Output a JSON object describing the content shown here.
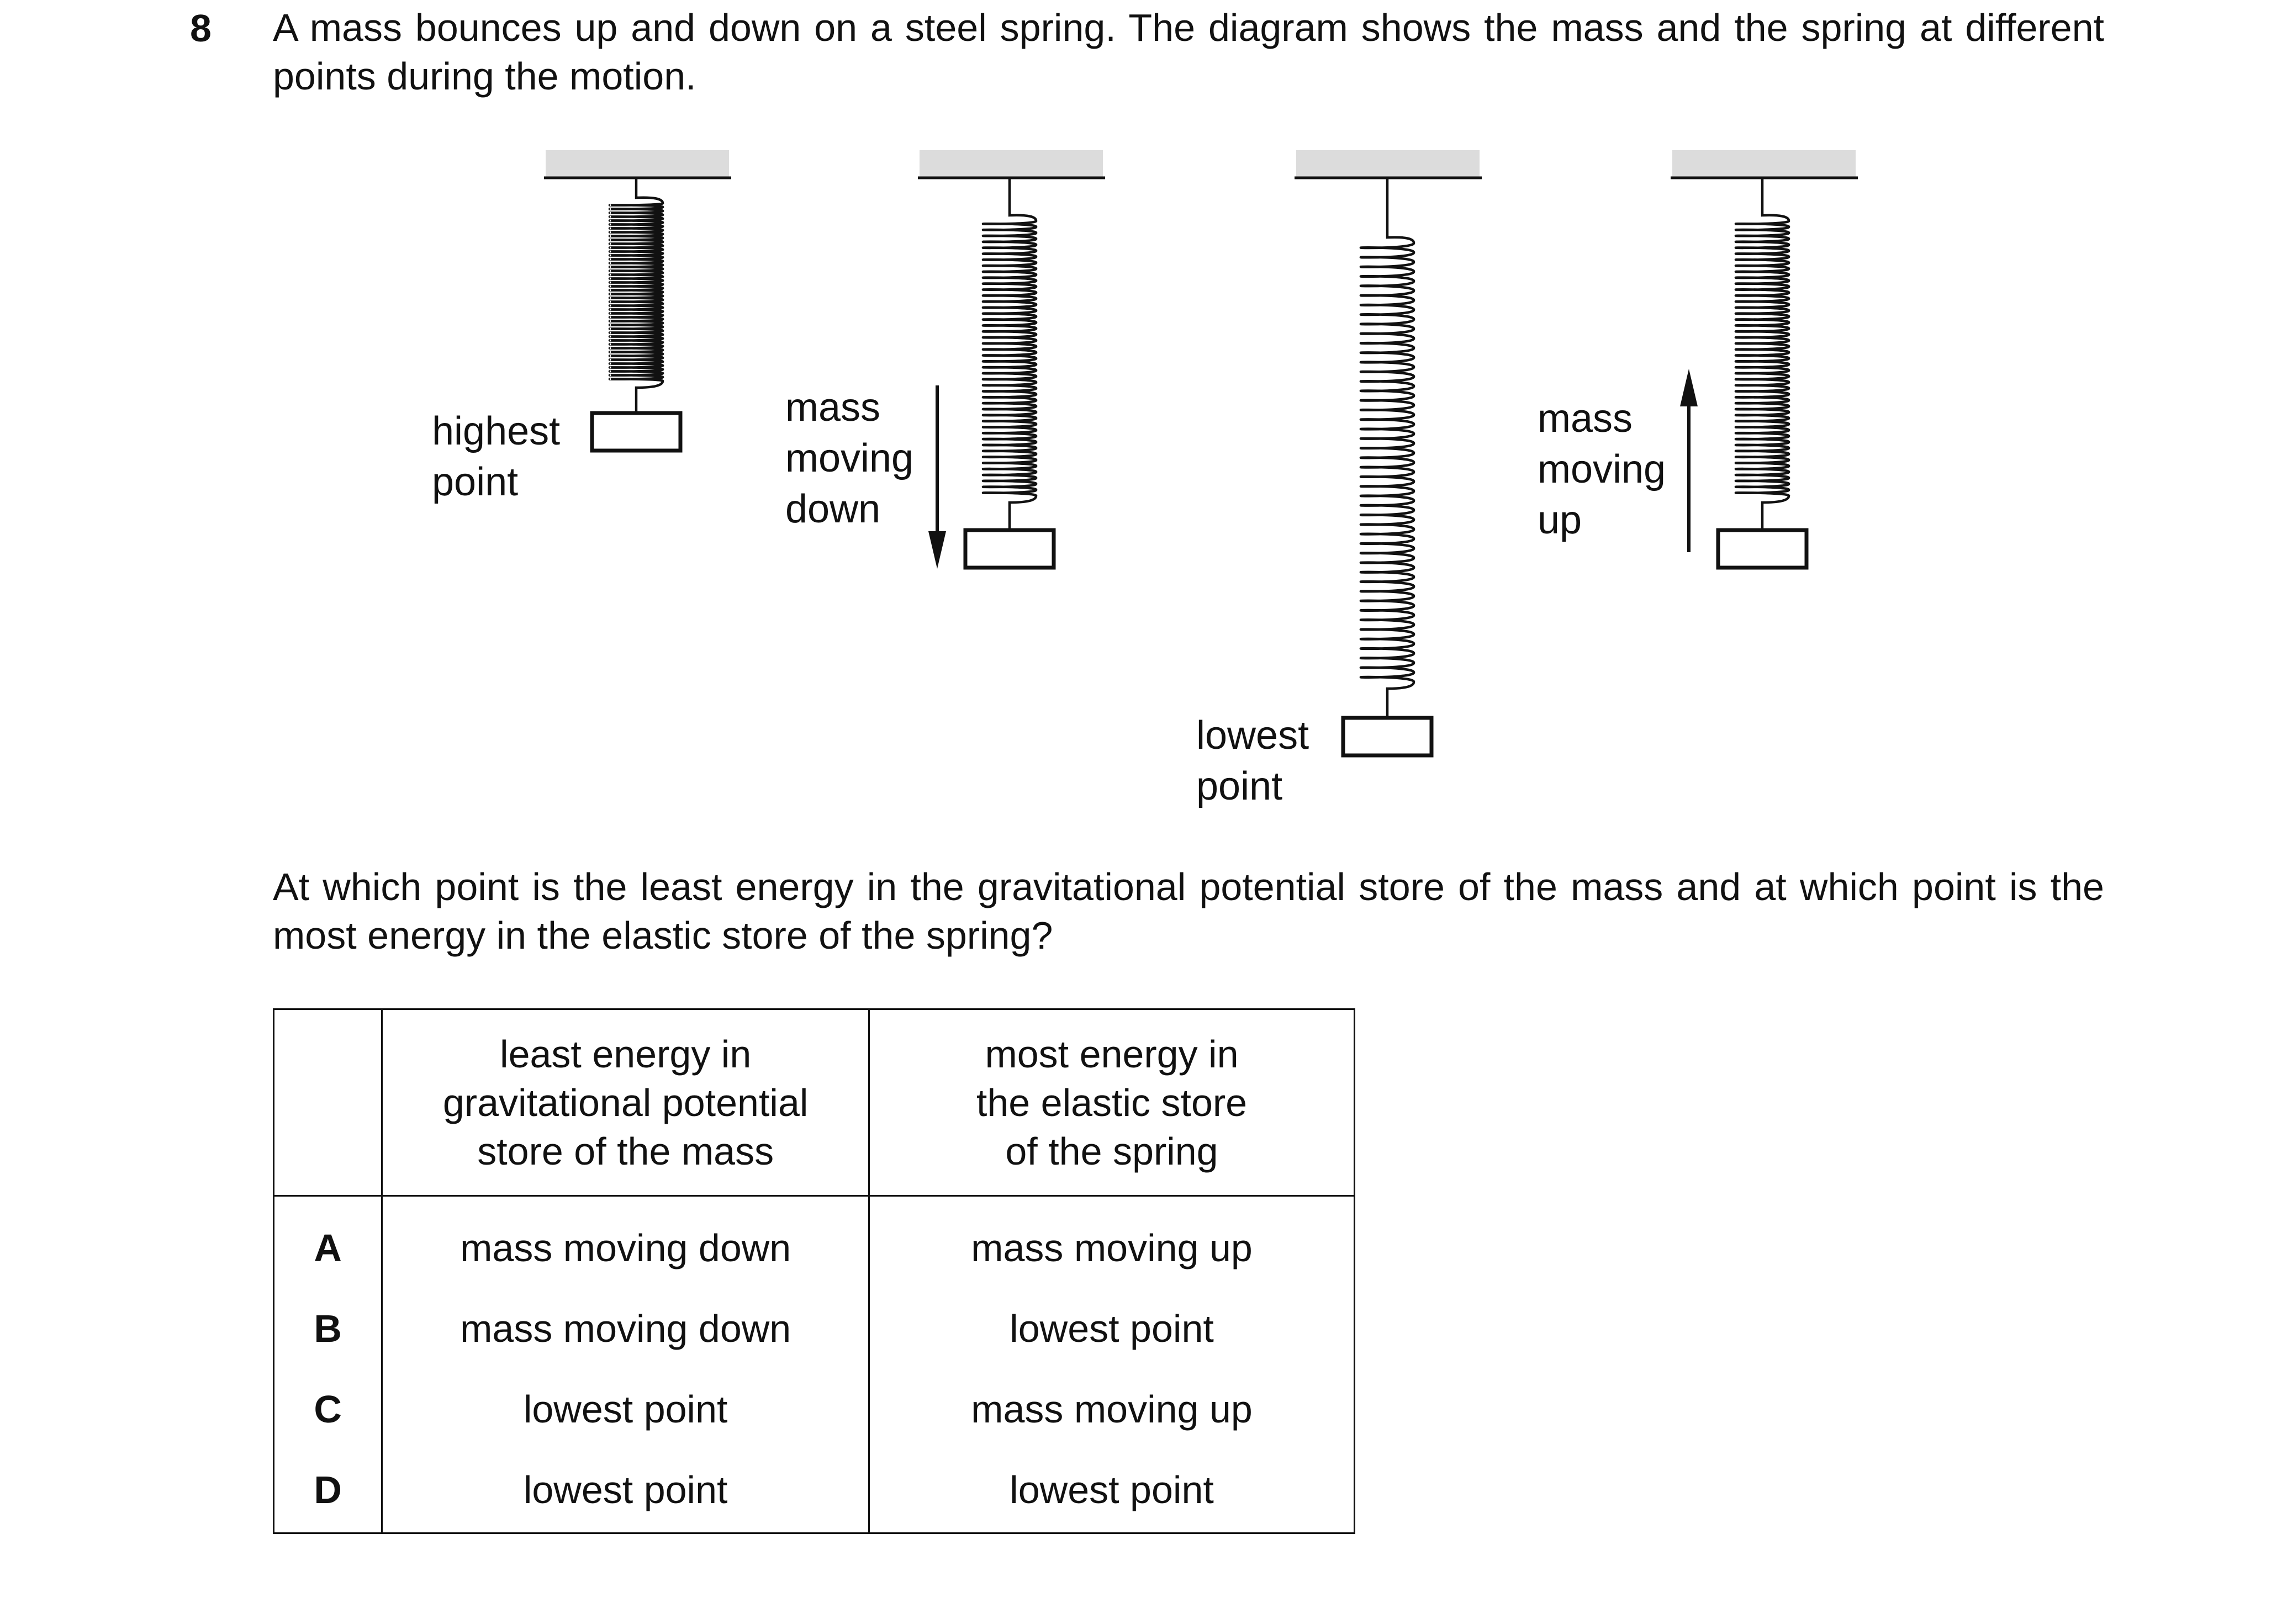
{
  "question": {
    "number": "8",
    "intro": "A mass bounces up and down on a steel spring. The diagram shows the mass and the spring at different points during the motion.",
    "prompt": "At which point is the least energy in the gravitational potential store of the mass and at which point is the most energy in the elastic store of the spring?"
  },
  "diagram": {
    "labels": {
      "highest": [
        "highest",
        "point"
      ],
      "moving_down": [
        "mass",
        "moving",
        "down"
      ],
      "lowest": [
        "lowest",
        "point"
      ],
      "moving_up": [
        "mass",
        "moving",
        "up"
      ]
    }
  },
  "table": {
    "headers": [
      "",
      "least energy in gravitational potential store of the mass",
      "most energy in the elastic store of the spring"
    ],
    "header_lines": {
      "col1": [
        "least energy in",
        "gravitational potential",
        "store of the mass"
      ],
      "col2": [
        "most energy in",
        "the elastic store",
        "of the spring"
      ]
    },
    "rows": [
      {
        "letter": "A",
        "gravitational": "mass moving down",
        "elastic": "mass moving up"
      },
      {
        "letter": "B",
        "gravitational": "mass moving down",
        "elastic": "lowest point"
      },
      {
        "letter": "C",
        "gravitational": "lowest point",
        "elastic": "mass moving up"
      },
      {
        "letter": "D",
        "gravitational": "lowest point",
        "elastic": "lowest point"
      }
    ]
  }
}
